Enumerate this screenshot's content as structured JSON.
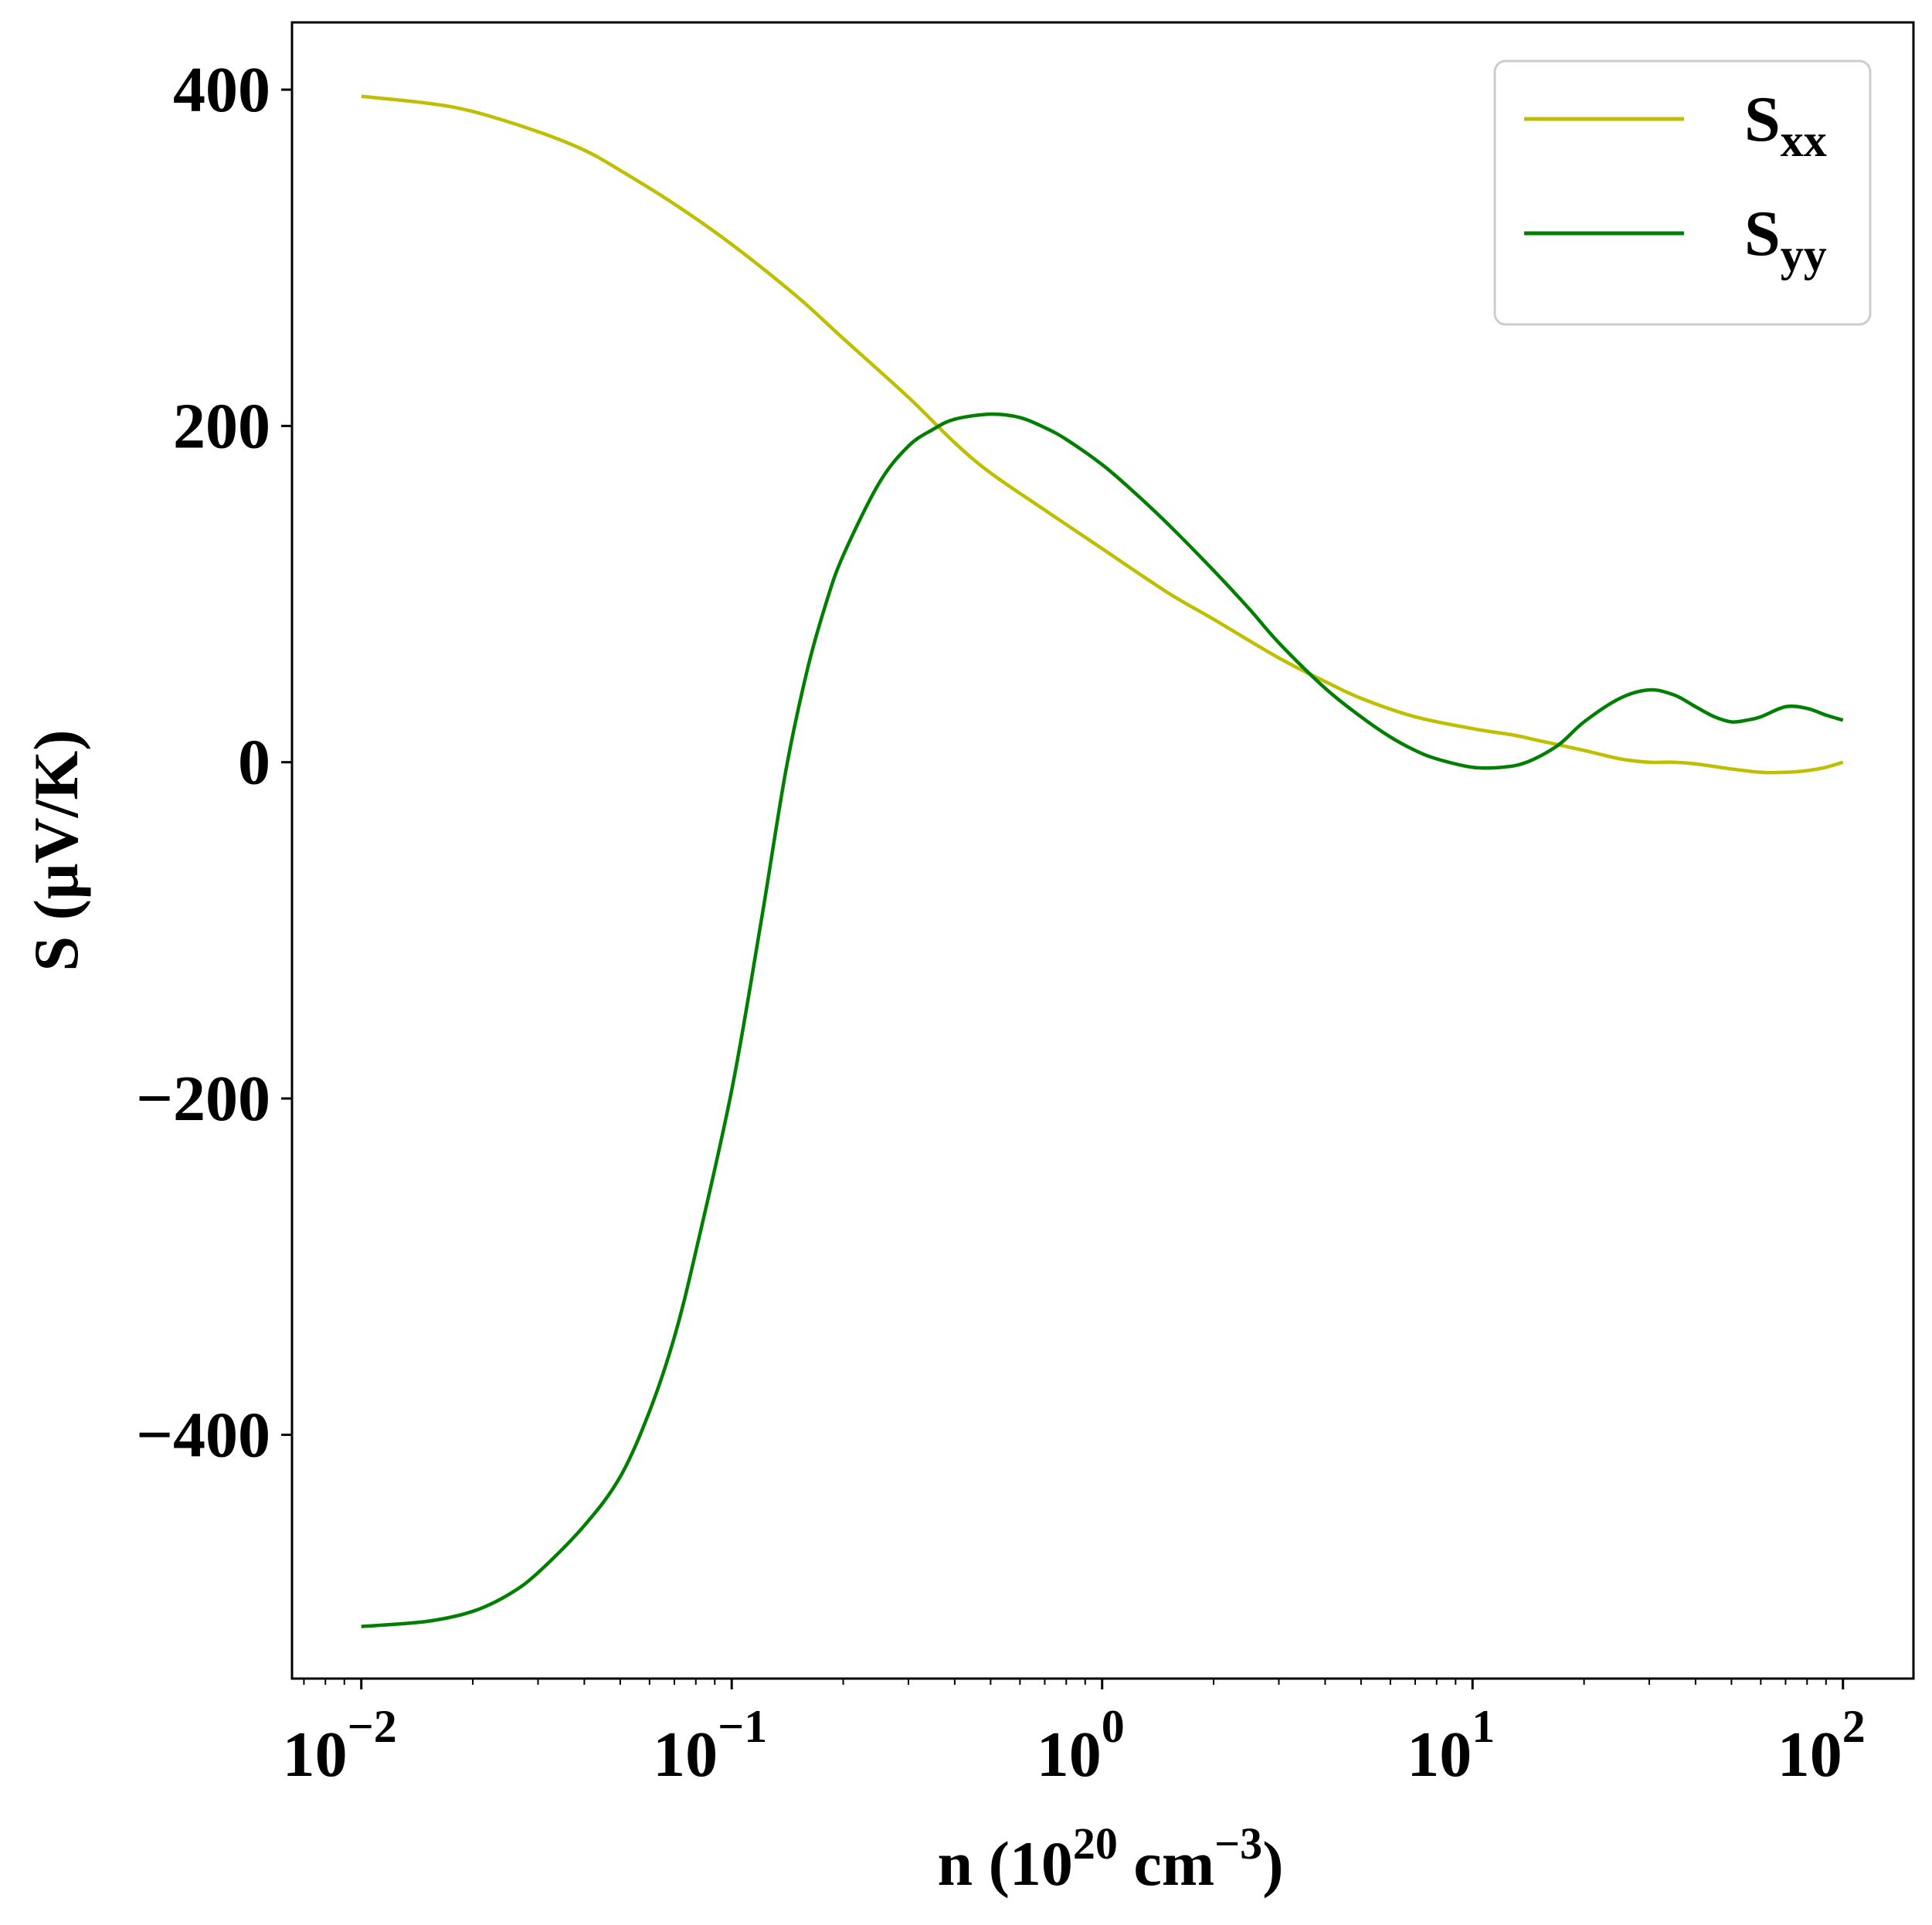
{
  "chart_data": {
    "type": "line",
    "xscale": "log",
    "xlim": [
      0.0065,
      155
    ],
    "ylim": [
      -545,
      440
    ],
    "xlabel": {
      "main": "n (10",
      "sup1": "20",
      "mid": " cm",
      "sup2": "−3",
      "end": ")"
    },
    "ylabel": "S (μV/K)",
    "xticks": [
      {
        "value": 0.01,
        "base": "10",
        "exp": "−2"
      },
      {
        "value": 0.1,
        "base": "10",
        "exp": "−1"
      },
      {
        "value": 1,
        "base": "10",
        "exp": "0"
      },
      {
        "value": 10,
        "base": "10",
        "exp": "1"
      },
      {
        "value": 100,
        "base": "10",
        "exp": "2"
      }
    ],
    "yticks": [
      {
        "value": 400,
        "label": "400"
      },
      {
        "value": 200,
        "label": "200"
      },
      {
        "value": 0,
        "label": "0"
      },
      {
        "value": -200,
        "label": "−200"
      },
      {
        "value": -400,
        "label": "−400"
      }
    ],
    "grid": false,
    "legend_position": "top-right",
    "series": [
      {
        "name": "S",
        "sub": "xx",
        "color": "#bfbf00",
        "x": [
          0.01,
          0.015,
          0.02,
          0.03,
          0.04,
          0.05,
          0.07,
          0.1,
          0.15,
          0.2,
          0.3,
          0.4,
          0.5,
          0.7,
          1.0,
          1.5,
          2,
          3,
          4,
          5,
          7,
          10,
          13,
          15,
          20,
          25,
          30,
          35,
          40,
          50,
          60,
          70,
          80,
          90,
          100
        ],
        "y": [
          396,
          392,
          387,
          375,
          364,
          352,
          332,
          308,
          277,
          252,
          217,
          190,
          172,
          150,
          127,
          101,
          85,
          62,
          48,
          38,
          27,
          20,
          16,
          13,
          7,
          2,
          0,
          0,
          -1,
          -4,
          -6,
          -6,
          -5,
          -3,
          0
        ]
      },
      {
        "name": "S",
        "sub": "yy",
        "color": "#007f00",
        "x": [
          0.01,
          0.015,
          0.02,
          0.025,
          0.03,
          0.04,
          0.05,
          0.06,
          0.07,
          0.08,
          0.1,
          0.12,
          0.14,
          0.16,
          0.18,
          0.2,
          0.25,
          0.3,
          0.35,
          0.4,
          0.5,
          0.6,
          0.7,
          0.8,
          1.0,
          1.2,
          1.5,
          2,
          2.5,
          3,
          4,
          5,
          6,
          7,
          8,
          10,
          12,
          14,
          17,
          20,
          25,
          30,
          35,
          40,
          45,
          50,
          55,
          60,
          70,
          80,
          90,
          100
        ],
        "y": [
          -514,
          -511,
          -505,
          -495,
          -482,
          -454,
          -425,
          -386,
          -342,
          -291,
          -195,
          -95,
          -5,
          55,
          95,
          123,
          166,
          188,
          198,
          204,
          207,
          205,
          199,
          192,
          177,
          162,
          142,
          114,
          91,
          71,
          44,
          27,
          15,
          7,
          2,
          -3,
          -3,
          0,
          10,
          24,
          38,
          43,
          40,
          33,
          27,
          24,
          25,
          27,
          33,
          32,
          28,
          25
        ]
      }
    ]
  }
}
